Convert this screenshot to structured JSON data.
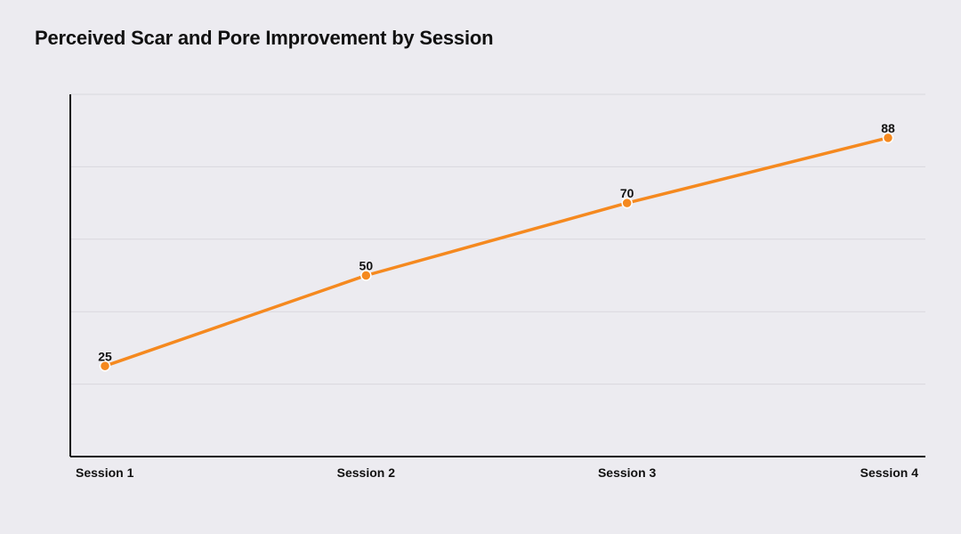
{
  "chart_data": {
    "type": "line",
    "title": "Perceived Scar and Pore Improvement by Session",
    "categories": [
      "Session 1",
      "Session 2",
      "Session 3",
      "Session 4"
    ],
    "series": [
      {
        "values": [
          25,
          50,
          70,
          88
        ]
      }
    ],
    "ylim": [
      0,
      100
    ],
    "y_gridlines": [
      20,
      40,
      60,
      80,
      100
    ],
    "grid": true,
    "y_tick_labels_visible": false,
    "data_labels": true,
    "colors": {
      "line": "#f5891f",
      "grid": "#d9d8de",
      "axis": "#111111",
      "background": "#ecebf0"
    }
  }
}
